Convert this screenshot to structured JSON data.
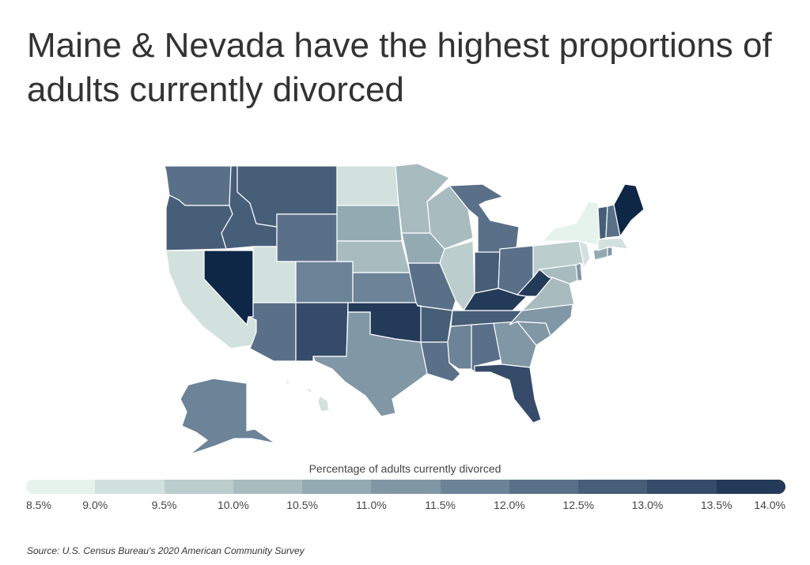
{
  "title": "Maine & Nevada have the highest proportions of adults currently divorced",
  "legend": {
    "title": "Percentage of adults currently divorced",
    "ticks": [
      "8.5%",
      "9.0%",
      "9.5%",
      "10.0%",
      "10.5%",
      "11.0%",
      "11.5%",
      "12.0%",
      "12.5%",
      "13.0%",
      "13.5%",
      "14.0%"
    ],
    "colors": [
      "#e6f2ec",
      "#d2e1dd",
      "#bccdcd",
      "#a8bcc0",
      "#93aab3",
      "#8197a6",
      "#6c8398",
      "#5a7089",
      "#475e79",
      "#354b69",
      "#233a58",
      "#0f2747"
    ]
  },
  "source": "Source:  U.S. Census Bureau's 2020 American Community Survey",
  "states": {
    "WA": {
      "bin": 7
    },
    "OR": {
      "bin": 8
    },
    "CA": {
      "bin": 1
    },
    "ID": {
      "bin": 8
    },
    "NV": {
      "bin": 11
    },
    "UT": {
      "bin": 1
    },
    "AZ": {
      "bin": 7
    },
    "MT": {
      "bin": 8
    },
    "WY": {
      "bin": 7
    },
    "CO": {
      "bin": 6
    },
    "NM": {
      "bin": 9
    },
    "ND": {
      "bin": 1
    },
    "SD": {
      "bin": 4
    },
    "NE": {
      "bin": 3
    },
    "KS": {
      "bin": 6
    },
    "OK": {
      "bin": 10
    },
    "TX": {
      "bin": 5
    },
    "MN": {
      "bin": 3
    },
    "IA": {
      "bin": 4
    },
    "MO": {
      "bin": 7
    },
    "AR": {
      "bin": 8
    },
    "LA": {
      "bin": 7
    },
    "WI": {
      "bin": 3
    },
    "IL": {
      "bin": 2
    },
    "MI": {
      "bin": 7
    },
    "IN": {
      "bin": 8
    },
    "OH": {
      "bin": 7
    },
    "KY": {
      "bin": 10
    },
    "TN": {
      "bin": 8
    },
    "MS": {
      "bin": 6
    },
    "AL": {
      "bin": 7
    },
    "GA": {
      "bin": 5
    },
    "FL": {
      "bin": 9
    },
    "SC": {
      "bin": 5
    },
    "NC": {
      "bin": 5
    },
    "VA": {
      "bin": 3
    },
    "WV": {
      "bin": 10
    },
    "PA": {
      "bin": 2
    },
    "NY": {
      "bin": 0
    },
    "MD": {
      "bin": 3
    },
    "DE": {
      "bin": 5
    },
    "NJ": {
      "bin": 1
    },
    "CT": {
      "bin": 4
    },
    "RI": {
      "bin": 5
    },
    "MA": {
      "bin": 1
    },
    "VT": {
      "bin": 8
    },
    "NH": {
      "bin": 7
    },
    "ME": {
      "bin": 11
    },
    "AK": {
      "bin": 6
    },
    "HI": {
      "bin": 1
    }
  }
}
